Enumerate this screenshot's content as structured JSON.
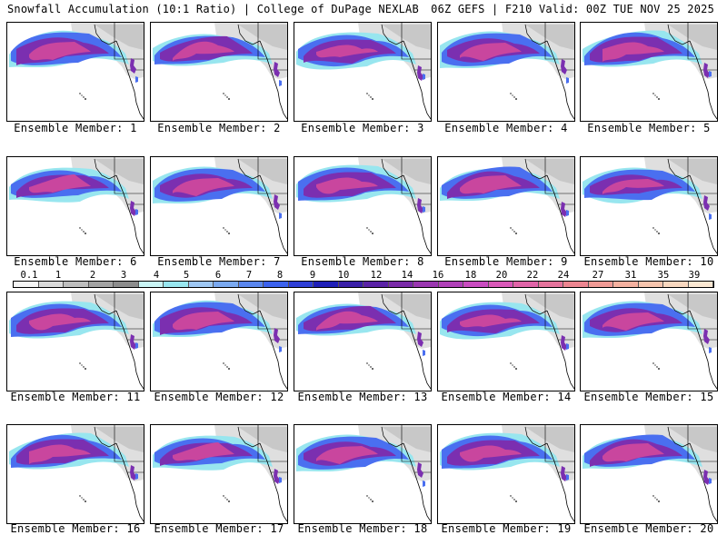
{
  "header": {
    "title_left": "Snowfall Accumulation (10:1 Ratio) | College of DuPage NEXLAB",
    "title_right": "06Z GEFS | F210 Valid: 00Z TUE NOV 25 2025"
  },
  "panels": [
    {
      "label": "Ensemble Member: 1"
    },
    {
      "label": "Ensemble Member: 2"
    },
    {
      "label": "Ensemble Member: 3"
    },
    {
      "label": "Ensemble Member: 4"
    },
    {
      "label": "Ensemble Member: 5"
    },
    {
      "label": "Ensemble Member: 6"
    },
    {
      "label": "Ensemble Member: 7"
    },
    {
      "label": "Ensemble Member: 8"
    },
    {
      "label": "Ensemble Member: 9"
    },
    {
      "label": "Ensemble Member: 10"
    },
    {
      "label": "Ensemble Member: 11"
    },
    {
      "label": "Ensemble Member: 12"
    },
    {
      "label": "Ensemble Member: 13"
    },
    {
      "label": "Ensemble Member: 14"
    },
    {
      "label": "Ensemble Member: 15"
    },
    {
      "label": "Ensemble Member: 16"
    },
    {
      "label": "Ensemble Member: 17"
    },
    {
      "label": "Ensemble Member: 18"
    },
    {
      "label": "Ensemble Member: 19"
    },
    {
      "label": "Ensemble Member: 20"
    }
  ],
  "legend": {
    "labels": [
      "0.1",
      "1",
      "2",
      "3",
      "4",
      "5",
      "6",
      "7",
      "8",
      "9",
      "10",
      "12",
      "14",
      "16",
      "18",
      "20",
      "22",
      "24",
      "27",
      "31",
      "35",
      "39"
    ],
    "colors": [
      "#f5f5f5",
      "#d9d9d9",
      "#bdbdbd",
      "#a3a3a3",
      "#8c8c8c",
      "#c9f5f5",
      "#98e6ef",
      "#9ec7f3",
      "#7aa9f0",
      "#5a86ee",
      "#3c62ee",
      "#2f3fd6",
      "#1f1fb8",
      "#3a1fa8",
      "#5a22a6",
      "#7a2aa8",
      "#9a36b0",
      "#b040b8",
      "#c94bc0",
      "#d958b8",
      "#e064a8",
      "#e5739c",
      "#ec8590",
      "#f09a95",
      "#f4b09f",
      "#f6c4ad",
      "#f8d7bf",
      "#fbe7d2"
    ],
    "snow_colors": {
      "light": "#4a6ff0",
      "moderate": "#7b2fb0",
      "heavy": "#c9469e",
      "trace": "#d9d9d9",
      "coast_fringe": "#98e6ef"
    }
  }
}
